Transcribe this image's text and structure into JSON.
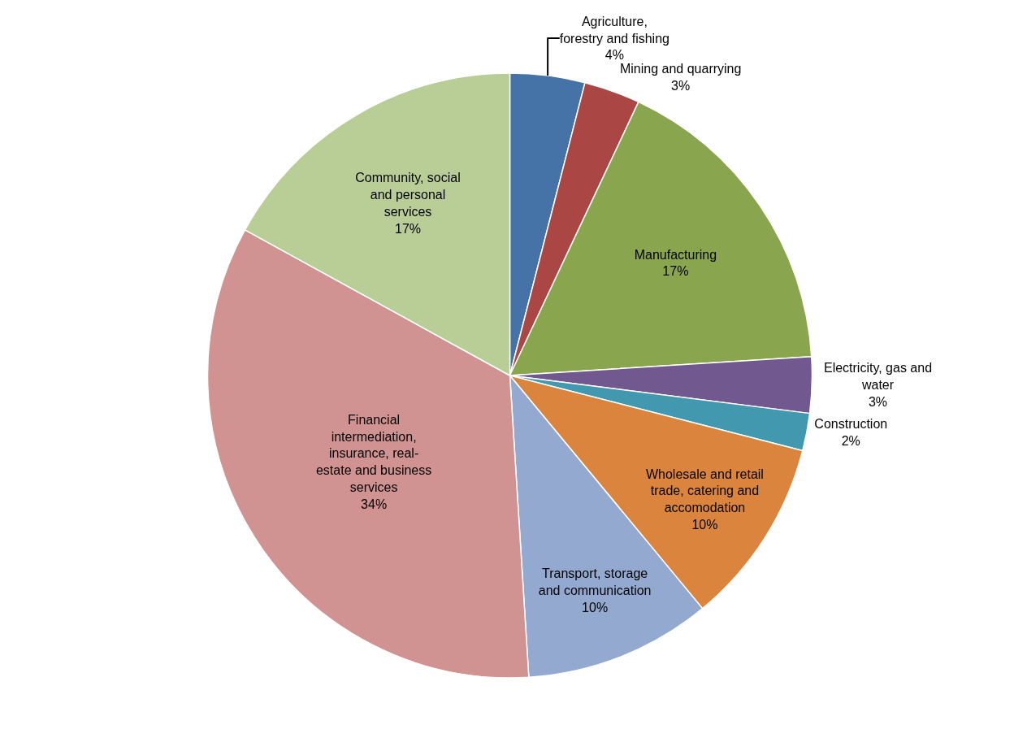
{
  "chart_data": {
    "type": "pie",
    "categories": [
      "Agriculture, forestry and fishing",
      "Mining and quarrying",
      "Manufacturing",
      "Electricity, gas and water",
      "Construction",
      "Wholesale and retail trade, catering and accomodation",
      "Transport, storage and communication",
      "Financial intermediation, insurance, real-estate and business services",
      "Community, social and personal services"
    ],
    "values": [
      4,
      3,
      17,
      3,
      2,
      10,
      10,
      34,
      17
    ],
    "value_labels": [
      "4%",
      "3%",
      "17%",
      "3%",
      "2%",
      "10%",
      "10%",
      "34%",
      "17%"
    ],
    "colors": [
      "#4572a7",
      "#aa4643",
      "#89a54e",
      "#71588f",
      "#4198af",
      "#db843d",
      "#93a9cf",
      "#d19392",
      "#b9cd96"
    ],
    "legend": false
  }
}
